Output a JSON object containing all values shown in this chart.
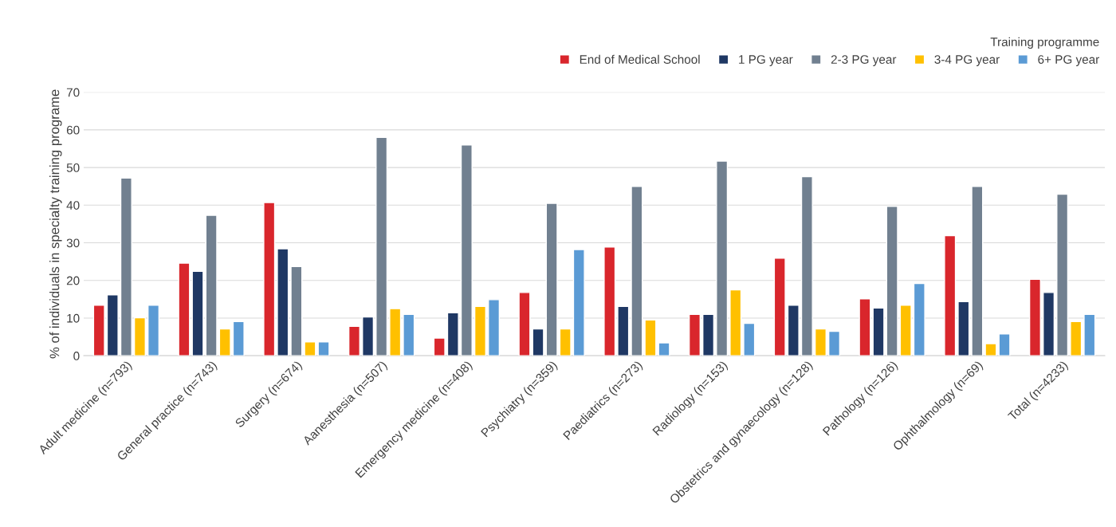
{
  "chart_data": {
    "type": "bar",
    "ylabel": "% of individuals in specialty training programe",
    "legend_title": "Training programme",
    "categories": [
      "Adult medicine (n=793)",
      "General practice (n=743)",
      "Surgery (n=674)",
      "Aanesthesia (n=507)",
      "Emergency medicine (n=408)",
      "Psychiatry (n=359)",
      "Paediatrics (n=273)",
      "Radiology (n=153)",
      "Obstetrics and gynaecology (n=128)",
      "Pathology (n=126)",
      "Ophthalmology (n=69)",
      "Total (n=4233)"
    ],
    "series": [
      {
        "name": "End of Medical School",
        "color": "#d9262c",
        "values": [
          13.4,
          24.6,
          40.7,
          7.8,
          4.7,
          16.8,
          28.9,
          11.0,
          25.9,
          15.1,
          31.9,
          20.3
        ]
      },
      {
        "name": "1 PG year",
        "color": "#1f3864",
        "values": [
          16.2,
          22.4,
          28.4,
          10.3,
          11.4,
          7.1,
          13.1,
          11.0,
          13.4,
          12.7,
          14.4,
          16.8
        ]
      },
      {
        "name": "2-3 PG year",
        "color": "#718090",
        "values": [
          47.2,
          37.3,
          23.7,
          58.0,
          56.0,
          40.5,
          45.0,
          51.7,
          47.6,
          39.7,
          45.0,
          42.9
        ]
      },
      {
        "name": "3-4 PG year",
        "color": "#ffc000",
        "values": [
          10.1,
          7.1,
          3.7,
          12.5,
          13.1,
          7.1,
          9.5,
          17.5,
          7.1,
          13.4,
          3.2,
          9.1
        ]
      },
      {
        "name": "6+ PG year",
        "color": "#5b9bd5",
        "values": [
          13.4,
          9.1,
          3.7,
          11.0,
          14.9,
          28.2,
          3.4,
          8.6,
          6.5,
          19.2,
          5.8,
          11.0
        ]
      }
    ],
    "ylim": [
      0,
      70
    ],
    "yticks": [
      0,
      10,
      20,
      30,
      40,
      50,
      60,
      70
    ],
    "grid": "y",
    "legend": "top right"
  }
}
